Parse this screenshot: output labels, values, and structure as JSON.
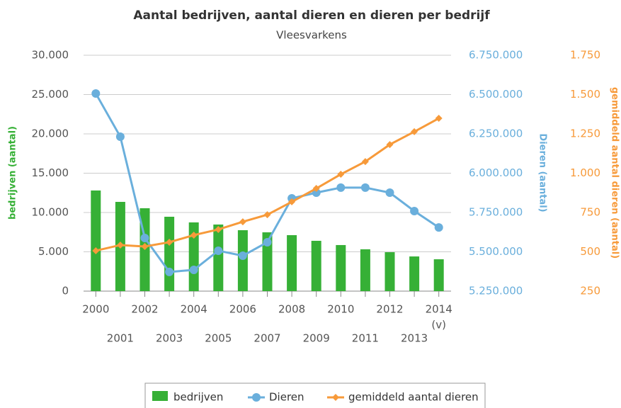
{
  "chart_data": {
    "type": "combo",
    "title": "Aantal bedrijven, aantal dieren en dieren per bedrijf",
    "subtitle": "Vleesvarkens",
    "categories": [
      "2000",
      "2001",
      "2002",
      "2003",
      "2004",
      "2005",
      "2006",
      "2007",
      "2008",
      "2009",
      "2010",
      "2011",
      "2012",
      "2013",
      "2014"
    ],
    "x_note": "(v)",
    "ylabel": "bedrijven (aantal)",
    "y2label": "Dieren (aantal)",
    "y3label": "gemiddeld aantal dieren (aantal)",
    "ylim": [
      0,
      30000
    ],
    "yticks": [
      0,
      {
        "value": 5000,
        "label": "5.000"
      },
      {
        "value": 10000,
        "label": "10.000"
      },
      {
        "value": 15000,
        "label": "15.000"
      },
      {
        "value": 20000,
        "label": "20.000"
      },
      {
        "value": 25000,
        "label": "25.000"
      },
      {
        "value": 30000,
        "label": "30.000"
      }
    ],
    "y2lim": [
      5250000,
      6750000
    ],
    "y2ticks": [
      {
        "value": 5250000,
        "label": "5.250.000"
      },
      {
        "value": 5500000,
        "label": "5.500.000"
      },
      {
        "value": 5750000,
        "label": "5.750.000"
      },
      {
        "value": 6000000,
        "label": "6.000.000"
      },
      {
        "value": 6250000,
        "label": "6.250.000"
      },
      {
        "value": 6500000,
        "label": "6.500.000"
      },
      {
        "value": 6750000,
        "label": "6.750.000"
      }
    ],
    "y3lim": [
      250,
      1750
    ],
    "y3ticks": [
      250,
      500,
      750,
      {
        "value": 1000,
        "label": "1.000"
      },
      {
        "value": 1250,
        "label": "1.250"
      },
      {
        "value": 1500,
        "label": "1.500"
      },
      {
        "value": 1750,
        "label": "1.750"
      }
    ],
    "grid": true,
    "series": [
      {
        "name": "bedrijven",
        "kind": "bar",
        "axis": "y",
        "color": "#36b036",
        "values": [
          12800,
          11350,
          10540,
          9460,
          8740,
          8470,
          7750,
          7480,
          7120,
          6400,
          5860,
          5320,
          4950,
          4410,
          4050
        ]
      },
      {
        "name": "Dieren",
        "kind": "line",
        "axis": "y2",
        "marker": "circle",
        "color": "#6aafdc",
        "values": [
          6507000,
          6232000,
          5588000,
          5372000,
          5385000,
          5507000,
          5475000,
          5561000,
          5840000,
          5876000,
          5908000,
          5908000,
          5876000,
          5759000,
          5655000
        ]
      },
      {
        "name": "gemiddeld aantal dieren",
        "kind": "line",
        "axis": "y3",
        "marker": "diamond",
        "color": "#f79a3a",
        "values": [
          507,
          543,
          534,
          561,
          606,
          642,
          691,
          736,
          818,
          903,
          993,
          1074,
          1182,
          1264,
          1349
        ]
      }
    ]
  }
}
